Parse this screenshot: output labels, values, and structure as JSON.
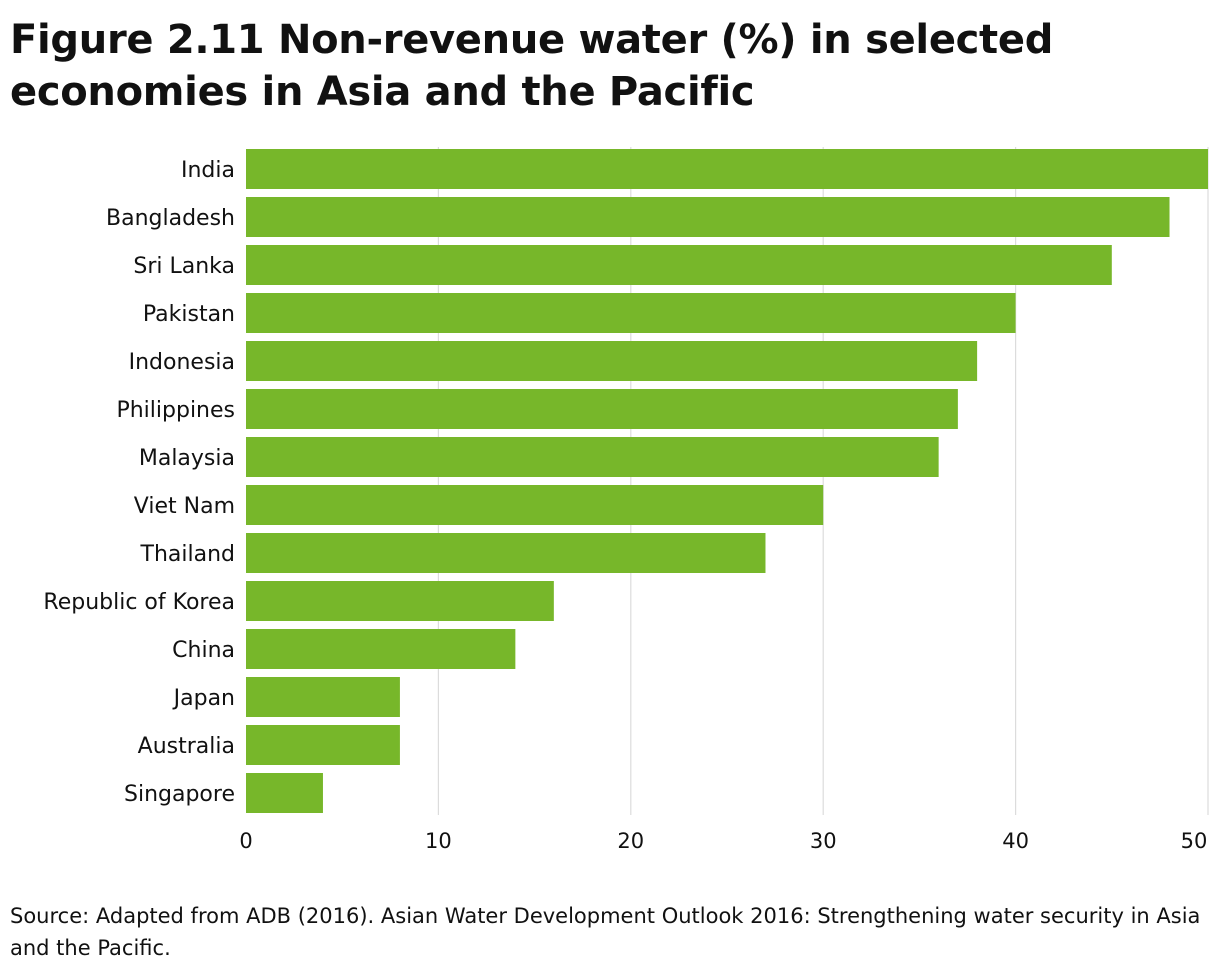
{
  "chart_data": {
    "type": "bar",
    "orientation": "horizontal",
    "title": "Figure 2.11 Non-revenue water (%) in selected economies in Asia and the Pacific",
    "categories": [
      "India",
      "Bangladesh",
      "Sri Lanka",
      "Pakistan",
      "Indonesia",
      "Philippines",
      "Malaysia",
      "Viet Nam",
      "Thailand",
      "Republic of Korea",
      "China",
      "Japan",
      "Australia",
      "Singapore"
    ],
    "values": [
      50,
      48,
      45,
      40,
      38,
      37,
      36,
      30,
      27,
      16,
      14,
      8,
      8,
      4
    ],
    "xticks": [
      "0",
      "10",
      "20",
      "30",
      "40",
      "50"
    ],
    "xlim": [
      0,
      50
    ],
    "grid": true,
    "bar_color": "#77b72a",
    "grid_color": "#dcdcdc",
    "source": "Source: Adapted from ADB (2016). Asian Water Development Outlook 2016: Strengthening water security in Asia and the Pacific."
  }
}
